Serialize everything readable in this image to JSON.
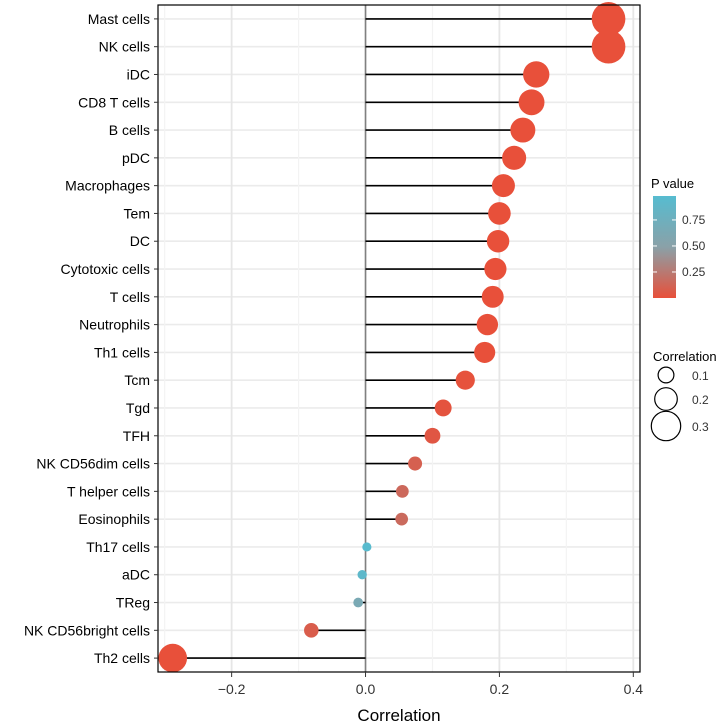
{
  "chart_data": {
    "type": "lollipop",
    "xlabel": "Correlation",
    "xlim": [
      -0.31,
      0.41
    ],
    "xticks": [
      -0.2,
      0.0,
      0.2,
      0.4
    ],
    "xtick_labels": [
      "−0.2",
      "0.0",
      "0.2",
      "0.4"
    ],
    "grid": true,
    "categories": [
      "Mast cells",
      "NK cells",
      "iDC",
      "CD8 T cells",
      "B cells",
      "pDC",
      "Macrophages",
      "Tem",
      "DC",
      "Cytotoxic cells",
      "T cells",
      "Neutrophils",
      "Th1 cells",
      "Tcm",
      "Tgd",
      "TFH",
      "NK CD56dim cells",
      "T helper cells",
      "Eosinophils",
      "Th17 cells",
      "aDC",
      "TReg",
      "NK CD56bright cells",
      "Th2 cells"
    ],
    "correlation": [
      0.363,
      0.363,
      0.255,
      0.248,
      0.235,
      0.222,
      0.206,
      0.2,
      0.198,
      0.194,
      0.19,
      0.182,
      0.178,
      0.149,
      0.116,
      0.1,
      0.074,
      0.055,
      0.054,
      0.002,
      -0.005,
      -0.011,
      -0.081,
      -0.288
    ],
    "p_value": [
      0.0,
      0.0,
      0.0,
      0.0,
      0.0,
      0.0,
      0.0,
      0.0,
      0.0,
      0.0,
      0.0,
      0.0,
      0.0,
      0.01,
      0.02,
      0.04,
      0.1,
      0.15,
      0.16,
      0.98,
      0.92,
      0.65,
      0.08,
      0.0
    ],
    "legend_color": {
      "title": "P value",
      "ticks": [
        0.75,
        0.5,
        0.25
      ],
      "tick_labels": [
        "0.75",
        "0.50",
        "0.25"
      ],
      "low_color": "#E8503A",
      "mid_color": "#8AA1A8",
      "high_color": "#56BCD0"
    },
    "legend_size": {
      "title": "Correlation",
      "values": [
        0.1,
        0.2,
        0.3
      ],
      "labels": [
        "0.1",
        "0.2",
        "0.3"
      ]
    }
  }
}
